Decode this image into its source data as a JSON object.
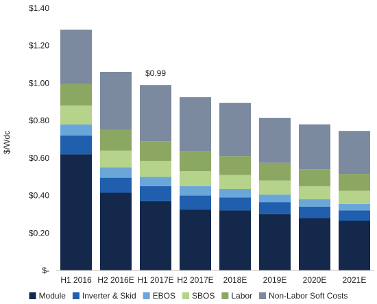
{
  "chart_data": {
    "type": "bar",
    "stacked": true,
    "ylabel": "$/Wdc",
    "ylim": [
      0,
      1.4
    ],
    "yticks": [
      {
        "value": 0,
        "label": "$-"
      },
      {
        "value": 0.2,
        "label": "$0.20"
      },
      {
        "value": 0.4,
        "label": "$0.40"
      },
      {
        "value": 0.6,
        "label": "$0.60"
      },
      {
        "value": 0.8,
        "label": "$0.80"
      },
      {
        "value": 1.0,
        "label": "$1.00"
      },
      {
        "value": 1.2,
        "label": "$1.20"
      },
      {
        "value": 1.4,
        "label": "$1.40"
      }
    ],
    "categories": [
      "H1 2016",
      "H2 2016E",
      "H1 2017E",
      "H2 2017E",
      "2018E",
      "2019E",
      "2020E",
      "2021E"
    ],
    "series": [
      {
        "name": "Module",
        "color": "#14284b",
        "values": [
          0.62,
          0.415,
          0.37,
          0.325,
          0.32,
          0.3,
          0.28,
          0.265
        ]
      },
      {
        "name": "Inverter & Skid",
        "color": "#1f5fae",
        "values": [
          0.1,
          0.08,
          0.08,
          0.075,
          0.07,
          0.065,
          0.06,
          0.055
        ]
      },
      {
        "name": "EBOS",
        "color": "#6aa7d8",
        "values": [
          0.06,
          0.055,
          0.05,
          0.05,
          0.045,
          0.04,
          0.04,
          0.035
        ]
      },
      {
        "name": "SBOS",
        "color": "#b5d38a",
        "values": [
          0.1,
          0.09,
          0.085,
          0.08,
          0.075,
          0.075,
          0.07,
          0.07
        ]
      },
      {
        "name": "Labor",
        "color": "#8ca762",
        "values": [
          0.115,
          0.11,
          0.105,
          0.105,
          0.1,
          0.095,
          0.09,
          0.09
        ]
      },
      {
        "name": "Non-Labor Soft Costs",
        "color": "#7b8a9e",
        "values": [
          0.29,
          0.31,
          0.3,
          0.29,
          0.285,
          0.24,
          0.24,
          0.23
        ]
      }
    ],
    "annotations": [
      {
        "category": "H1 2017E",
        "text": "$0.99"
      }
    ],
    "grid": false,
    "legend_position": "bottom"
  }
}
